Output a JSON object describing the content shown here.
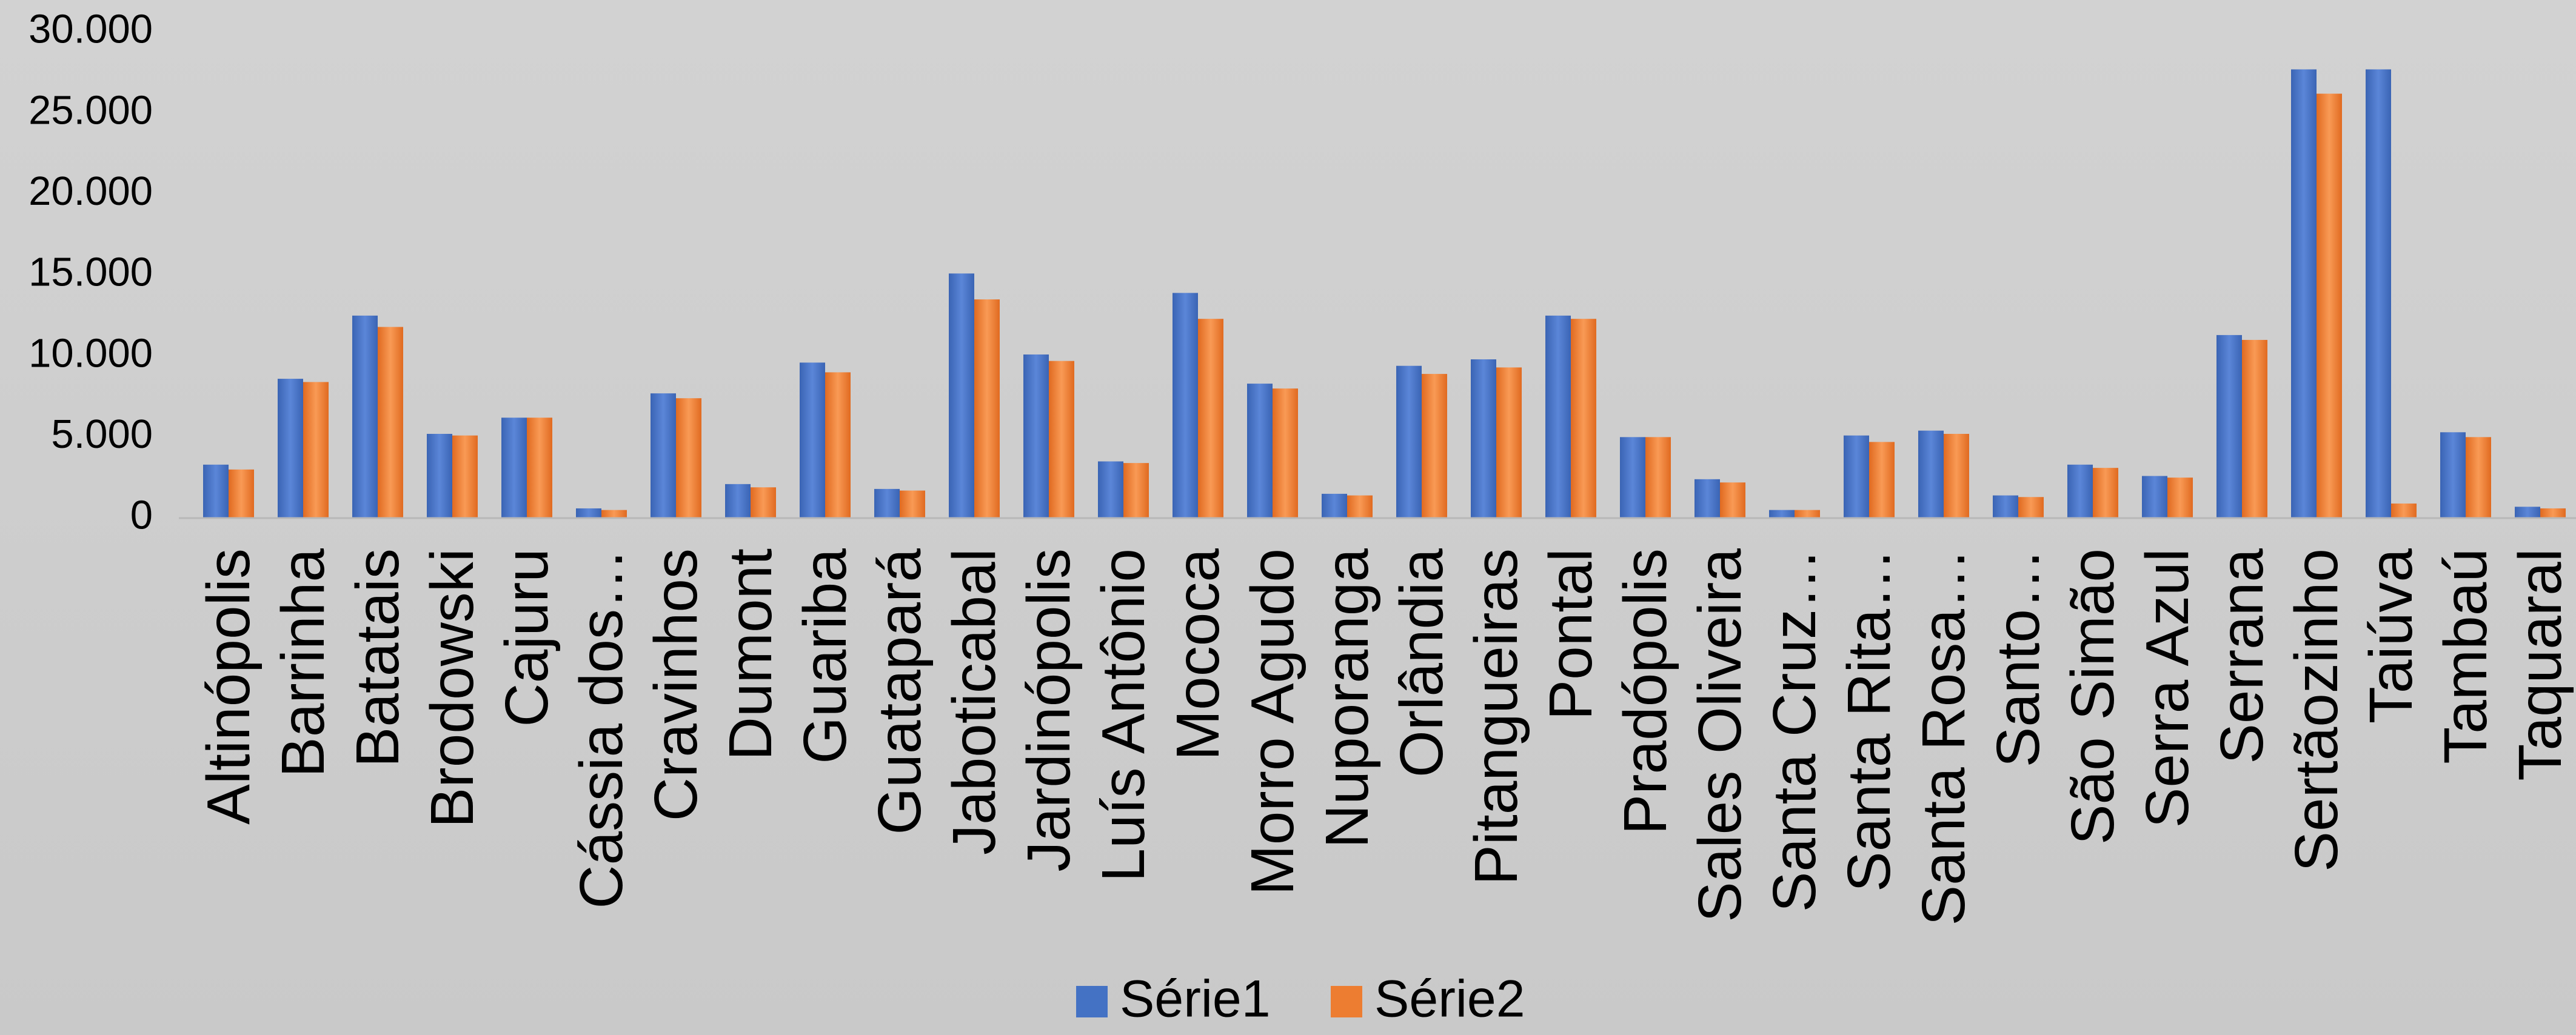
{
  "chart_data": {
    "type": "bar",
    "title": "",
    "xlabel": "",
    "ylabel": "",
    "ylim": [
      0,
      30000
    ],
    "yticks": [
      0,
      5000,
      10000,
      15000,
      20000,
      25000,
      30000
    ],
    "ytick_labels": [
      "0",
      "5.000",
      "10.000",
      "15.000",
      "20.000",
      "25.000",
      "30.000"
    ],
    "grid": false,
    "legend": "bottom",
    "categories": [
      "Altinópolis",
      "Barrinha",
      "Batatais",
      "Brodowski",
      "Cajuru",
      "Cássia dos…",
      "Cravinhos",
      "Dumont",
      "Guariba",
      "Guatapará",
      "Jaboticabal",
      "Jardinópolis",
      "Luís Antônio",
      "Mococa",
      "Morro Agudo",
      "Nuporanga",
      "Orlândia",
      "Pitangueiras",
      "Pontal",
      "Pradópolis",
      "Sales Oliveira",
      "Santa Cruz…",
      "Santa Rita…",
      "Santa Rosa…",
      "Santo…",
      "São Simão",
      "Serra Azul",
      "Serrana",
      "Sertãozinho",
      "Taiúva",
      "Tambaú",
      "Taquaral"
    ],
    "series": [
      {
        "name": "Série1",
        "color": "#4472c4",
        "values": [
          3300,
          8600,
          12500,
          5200,
          6200,
          600,
          7700,
          2100,
          9600,
          1800,
          15100,
          10100,
          3500,
          13900,
          8300,
          1500,
          9400,
          9800,
          12500,
          5000,
          2400,
          500,
          5100,
          5400,
          1400,
          3300,
          2600,
          11300,
          27700,
          27700,
          5300,
          700
        ]
      },
      {
        "name": "Série2",
        "color": "#ed7d31",
        "values": [
          3000,
          8400,
          11800,
          5100,
          6200,
          500,
          7400,
          1900,
          9000,
          1700,
          13500,
          9700,
          3400,
          12300,
          8000,
          1400,
          8900,
          9300,
          12300,
          5000,
          2200,
          500,
          4700,
          5200,
          1300,
          3100,
          2500,
          11000,
          26200,
          900,
          5000,
          600
        ]
      }
    ]
  }
}
